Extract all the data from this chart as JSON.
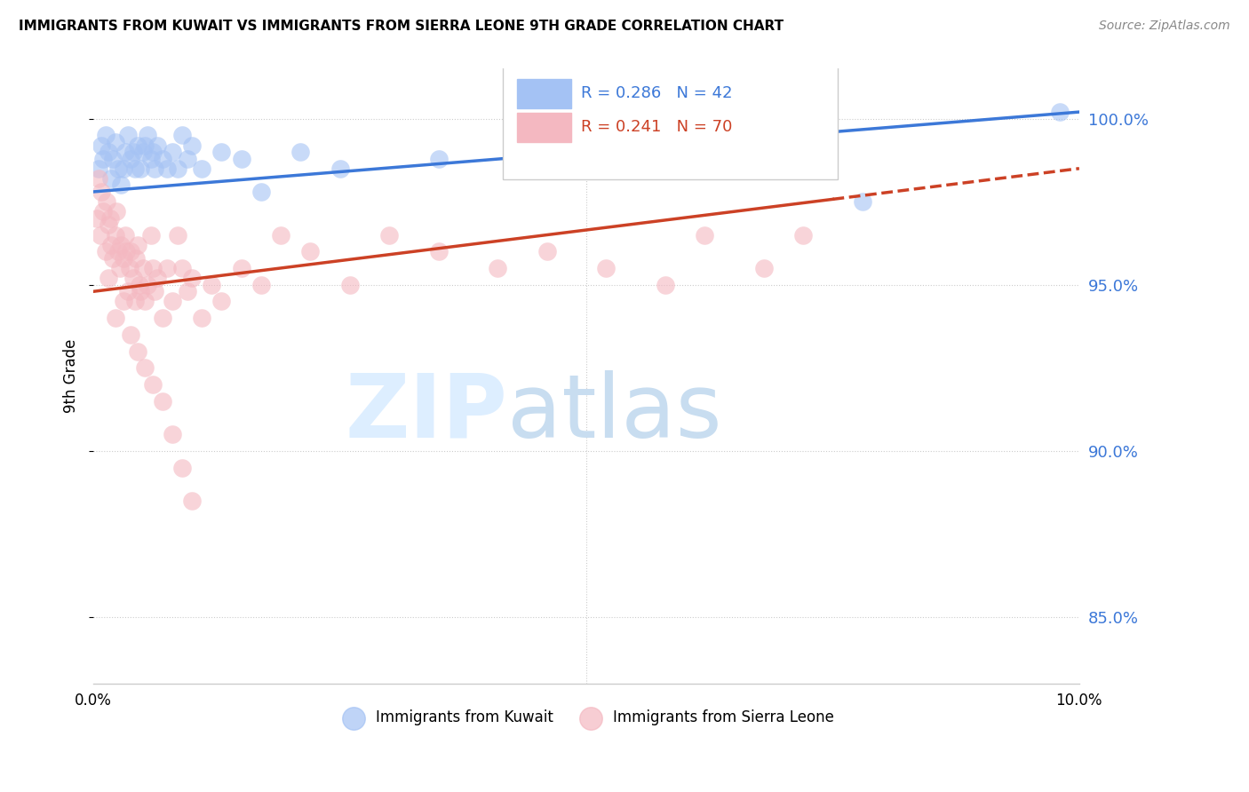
{
  "title": "IMMIGRANTS FROM KUWAIT VS IMMIGRANTS FROM SIERRA LEONE 9TH GRADE CORRELATION CHART",
  "source": "Source: ZipAtlas.com",
  "ylabel": "9th Grade",
  "xlim": [
    0.0,
    10.0
  ],
  "ylim": [
    83.0,
    101.5
  ],
  "yticks": [
    85.0,
    90.0,
    95.0,
    100.0
  ],
  "right_ytick_labels": [
    "85.0%",
    "90.0%",
    "95.0%",
    "100.0%"
  ],
  "kuwait_R": 0.286,
  "kuwait_N": 42,
  "sierra_leone_R": 0.241,
  "sierra_leone_N": 70,
  "kuwait_color": "#a4c2f4",
  "sierra_leone_color": "#f4b8c1",
  "kuwait_line_color": "#3c78d8",
  "sierra_leone_line_color": "#cc4125",
  "background_color": "#ffffff",
  "kuwait_line_x0": 0.0,
  "kuwait_line_y0": 97.8,
  "kuwait_line_x1": 10.0,
  "kuwait_line_y1": 100.2,
  "sierra_line_x0": 0.0,
  "sierra_line_y0": 94.8,
  "sierra_line_x1": 10.0,
  "sierra_line_y1": 98.5,
  "sierra_solid_end": 7.5,
  "kuwait_x": [
    0.05,
    0.08,
    0.1,
    0.12,
    0.15,
    0.18,
    0.2,
    0.22,
    0.25,
    0.28,
    0.3,
    0.32,
    0.35,
    0.38,
    0.4,
    0.42,
    0.45,
    0.48,
    0.5,
    0.52,
    0.55,
    0.58,
    0.6,
    0.62,
    0.65,
    0.7,
    0.75,
    0.8,
    0.85,
    0.9,
    0.95,
    1.0,
    1.1,
    1.3,
    1.5,
    1.7,
    2.1,
    2.5,
    3.5,
    5.0,
    7.8,
    9.8
  ],
  "kuwait_y": [
    98.5,
    99.2,
    98.8,
    99.5,
    99.0,
    98.2,
    98.8,
    99.3,
    98.5,
    98.0,
    98.5,
    99.0,
    99.5,
    98.8,
    99.0,
    98.5,
    99.2,
    98.5,
    99.0,
    99.2,
    99.5,
    98.8,
    99.0,
    98.5,
    99.2,
    98.8,
    98.5,
    99.0,
    98.5,
    99.5,
    98.8,
    99.2,
    98.5,
    99.0,
    98.8,
    97.8,
    99.0,
    98.5,
    98.8,
    98.5,
    97.5,
    100.2
  ],
  "sierra_leone_x": [
    0.03,
    0.05,
    0.07,
    0.08,
    0.1,
    0.12,
    0.13,
    0.15,
    0.17,
    0.18,
    0.2,
    0.22,
    0.23,
    0.25,
    0.27,
    0.28,
    0.3,
    0.32,
    0.33,
    0.35,
    0.37,
    0.38,
    0.4,
    0.42,
    0.43,
    0.45,
    0.47,
    0.48,
    0.5,
    0.52,
    0.55,
    0.58,
    0.6,
    0.62,
    0.65,
    0.7,
    0.75,
    0.8,
    0.85,
    0.9,
    0.95,
    1.0,
    1.1,
    1.3,
    1.5,
    1.7,
    1.9,
    2.2,
    2.6,
    3.0,
    3.5,
    4.1,
    4.6,
    5.2,
    5.8,
    6.2,
    6.8,
    7.2,
    0.15,
    0.22,
    0.3,
    0.38,
    0.45,
    0.52,
    0.6,
    0.7,
    0.8,
    0.9,
    1.0,
    1.2
  ],
  "sierra_leone_y": [
    97.0,
    98.2,
    96.5,
    97.8,
    97.2,
    96.0,
    97.5,
    96.8,
    97.0,
    96.2,
    95.8,
    96.5,
    97.2,
    96.0,
    95.5,
    96.2,
    95.8,
    96.5,
    96.0,
    94.8,
    95.5,
    96.0,
    95.2,
    94.5,
    95.8,
    96.2,
    95.0,
    94.8,
    95.5,
    94.5,
    95.0,
    96.5,
    95.5,
    94.8,
    95.2,
    94.0,
    95.5,
    94.5,
    96.5,
    95.5,
    94.8,
    95.2,
    94.0,
    94.5,
    95.5,
    95.0,
    96.5,
    96.0,
    95.0,
    96.5,
    96.0,
    95.5,
    96.0,
    95.5,
    95.0,
    96.5,
    95.5,
    96.5,
    95.2,
    94.0,
    94.5,
    93.5,
    93.0,
    92.5,
    92.0,
    91.5,
    90.5,
    89.5,
    88.5,
    95.0
  ]
}
